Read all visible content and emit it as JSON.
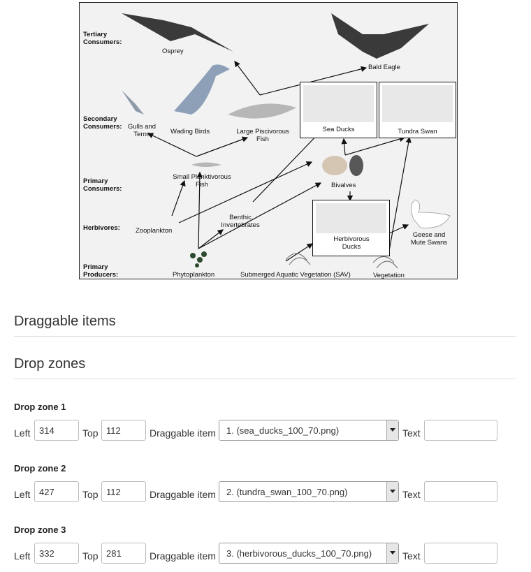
{
  "foodweb": {
    "levels": {
      "tertiary": "Tertiary Consumers:",
      "secondary": "Secondary Consumers:",
      "primary": "Primary Consumers:",
      "herbivores": "Herbivores:",
      "producers": "Primary Producers:"
    },
    "labels": {
      "osprey": "Osprey",
      "bald_eagle": "Bald Eagle",
      "gulls": "Gulls and Terns",
      "wading_birds": "Wading Birds",
      "large_fish": "Large Piscivorous Fish",
      "sea_ducks": "Sea Ducks",
      "tundra_swan": "Tundra Swan",
      "small_fish": "Small Planktivorous Fish",
      "bivalves": "Bivalves",
      "zooplankton": "Zooplankton",
      "benthic": "Benthic Invertebrates",
      "herbivorous_ducks": "Herbivorous Ducks",
      "geese": "Geese and Mute Swans",
      "phytoplankton": "Phytoplankton",
      "sav": "Submerged Aquatic Vegetation (SAV)",
      "vegetation": "Vegetation"
    }
  },
  "sections": {
    "draggable": "Draggable items",
    "dropzones": "Drop zones"
  },
  "form_labels": {
    "left": "Left",
    "top": "Top",
    "item": "Draggable item",
    "text": "Text"
  },
  "zones": [
    {
      "title": "Drop zone 1",
      "left": "314",
      "top": "112",
      "item": "1. (sea_ducks_100_70.png)",
      "text": ""
    },
    {
      "title": "Drop zone 2",
      "left": "427",
      "top": "112",
      "item": "2. (tundra_swan_100_70.png)",
      "text": ""
    },
    {
      "title": "Drop zone 3",
      "left": "332",
      "top": "281",
      "item": "3. (herbivorous_ducks_100_70.png)",
      "text": ""
    }
  ]
}
